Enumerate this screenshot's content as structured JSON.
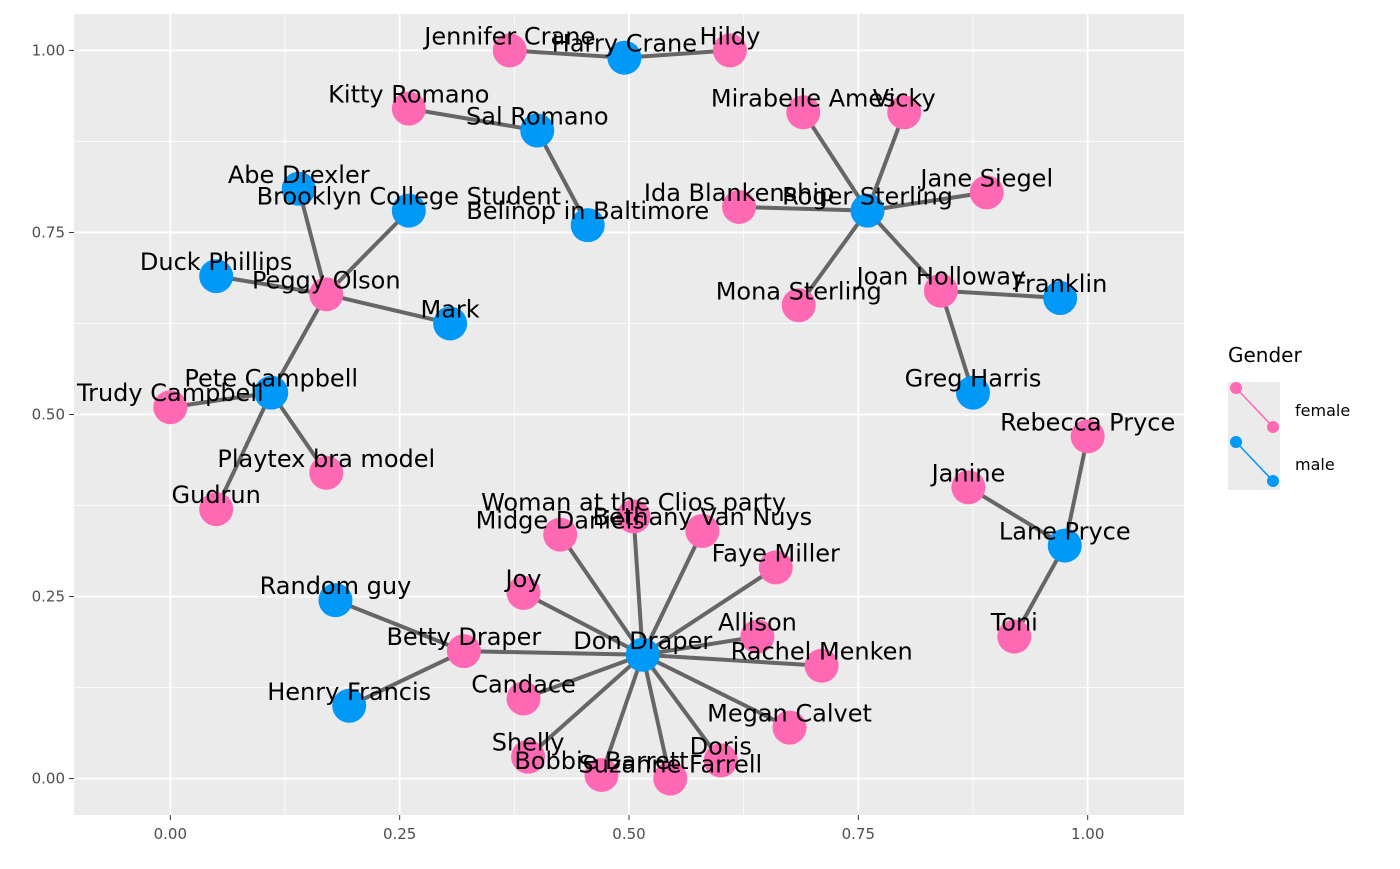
{
  "chart_data": {
    "type": "network",
    "x_ticks": [
      "0.00",
      "0.25",
      "0.50",
      "0.75",
      "1.00"
    ],
    "y_ticks": [
      "0.00",
      "0.25",
      "0.50",
      "0.75",
      "1.00"
    ],
    "xlim": [
      -0.105,
      1.105
    ],
    "ylim": [
      -0.05,
      1.05
    ],
    "grid": true,
    "colors": {
      "female": "#ff69b4",
      "male": "#0099f8",
      "edge": "#666666",
      "panel": "#ebebeb",
      "grid": "#ffffff"
    },
    "legend": {
      "title": "Gender",
      "position": "right",
      "items": [
        {
          "key": "female",
          "label": "female"
        },
        {
          "key": "male",
          "label": "male"
        }
      ]
    },
    "nodes": [
      {
        "id": "Jennifer Crane",
        "x": 0.37,
        "y": 1.0,
        "gender": "female"
      },
      {
        "id": "Harry Crane",
        "x": 0.495,
        "y": 0.99,
        "gender": "male"
      },
      {
        "id": "Hildy",
        "x": 0.61,
        "y": 1.0,
        "gender": "female"
      },
      {
        "id": "Kitty Romano",
        "x": 0.26,
        "y": 0.92,
        "gender": "female"
      },
      {
        "id": "Sal Romano",
        "x": 0.4,
        "y": 0.89,
        "gender": "male"
      },
      {
        "id": "Mirabelle Ames",
        "x": 0.69,
        "y": 0.915,
        "gender": "female"
      },
      {
        "id": "Vicky",
        "x": 0.8,
        "y": 0.915,
        "gender": "female"
      },
      {
        "id": "Abe Drexler",
        "x": 0.14,
        "y": 0.81,
        "gender": "male"
      },
      {
        "id": "Brooklyn College Student",
        "x": 0.26,
        "y": 0.78,
        "gender": "male"
      },
      {
        "id": "Belinop in Baltimore",
        "x": 0.455,
        "y": 0.76,
        "gender": "male"
      },
      {
        "id": "Ida Blankenship",
        "x": 0.62,
        "y": 0.785,
        "gender": "female"
      },
      {
        "id": "Roger Sterling",
        "x": 0.76,
        "y": 0.78,
        "gender": "male"
      },
      {
        "id": "Jane Siegel",
        "x": 0.89,
        "y": 0.805,
        "gender": "female"
      },
      {
        "id": "Duck Phillips",
        "x": 0.05,
        "y": 0.69,
        "gender": "male"
      },
      {
        "id": "Peggy Olson",
        "x": 0.17,
        "y": 0.665,
        "gender": "female"
      },
      {
        "id": "Mark",
        "x": 0.305,
        "y": 0.625,
        "gender": "male"
      },
      {
        "id": "Mona Sterling",
        "x": 0.685,
        "y": 0.65,
        "gender": "female"
      },
      {
        "id": "Joan Holloway",
        "x": 0.84,
        "y": 0.67,
        "gender": "female"
      },
      {
        "id": "Franklin",
        "x": 0.97,
        "y": 0.66,
        "gender": "male"
      },
      {
        "id": "Pete Campbell",
        "x": 0.11,
        "y": 0.53,
        "gender": "male"
      },
      {
        "id": "Trudy Campbell",
        "x": 0.0,
        "y": 0.51,
        "gender": "female"
      },
      {
        "id": "Greg Harris",
        "x": 0.875,
        "y": 0.53,
        "gender": "male"
      },
      {
        "id": "Rebecca Pryce",
        "x": 1.0,
        "y": 0.47,
        "gender": "female"
      },
      {
        "id": "Playtex bra model",
        "x": 0.17,
        "y": 0.42,
        "gender": "female"
      },
      {
        "id": "Gudrun",
        "x": 0.05,
        "y": 0.37,
        "gender": "female"
      },
      {
        "id": "Janine",
        "x": 0.87,
        "y": 0.4,
        "gender": "female"
      },
      {
        "id": "Woman at the Clios party",
        "x": 0.505,
        "y": 0.36,
        "gender": "female"
      },
      {
        "id": "Bethany Van Nuys",
        "x": 0.58,
        "y": 0.34,
        "gender": "female"
      },
      {
        "id": "Midge Daniels",
        "x": 0.425,
        "y": 0.335,
        "gender": "female"
      },
      {
        "id": "Lane Pryce",
        "x": 0.975,
        "y": 0.32,
        "gender": "male"
      },
      {
        "id": "Faye Miller",
        "x": 0.66,
        "y": 0.29,
        "gender": "female"
      },
      {
        "id": "Joy",
        "x": 0.385,
        "y": 0.255,
        "gender": "female"
      },
      {
        "id": "Random guy",
        "x": 0.18,
        "y": 0.245,
        "gender": "male"
      },
      {
        "id": "Allison",
        "x": 0.64,
        "y": 0.195,
        "gender": "female"
      },
      {
        "id": "Toni",
        "x": 0.92,
        "y": 0.195,
        "gender": "female"
      },
      {
        "id": "Betty Draper",
        "x": 0.32,
        "y": 0.175,
        "gender": "female"
      },
      {
        "id": "Don Draper",
        "x": 0.515,
        "y": 0.17,
        "gender": "male"
      },
      {
        "id": "Rachel Menken",
        "x": 0.71,
        "y": 0.155,
        "gender": "female"
      },
      {
        "id": "Candace",
        "x": 0.385,
        "y": 0.11,
        "gender": "female"
      },
      {
        "id": "Henry Francis",
        "x": 0.195,
        "y": 0.1,
        "gender": "male"
      },
      {
        "id": "Megan Calvet",
        "x": 0.675,
        "y": 0.07,
        "gender": "female"
      },
      {
        "id": "Shelly",
        "x": 0.39,
        "y": 0.03,
        "gender": "female"
      },
      {
        "id": "Doris",
        "x": 0.6,
        "y": 0.025,
        "gender": "female"
      },
      {
        "id": "Bobbie Barrett",
        "x": 0.47,
        "y": 0.005,
        "gender": "female"
      },
      {
        "id": "Suzanne Farrell",
        "x": 0.545,
        "y": 0.0,
        "gender": "female"
      }
    ],
    "edges": [
      [
        "Jennifer Crane",
        "Harry Crane"
      ],
      [
        "Harry Crane",
        "Hildy"
      ],
      [
        "Kitty Romano",
        "Sal Romano"
      ],
      [
        "Sal Romano",
        "Belinop in Baltimore"
      ],
      [
        "Abe Drexler",
        "Peggy Olson"
      ],
      [
        "Brooklyn College Student",
        "Peggy Olson"
      ],
      [
        "Duck Phillips",
        "Peggy Olson"
      ],
      [
        "Peggy Olson",
        "Mark"
      ],
      [
        "Peggy Olson",
        "Pete Campbell"
      ],
      [
        "Pete Campbell",
        "Trudy Campbell"
      ],
      [
        "Pete Campbell",
        "Playtex bra model"
      ],
      [
        "Pete Campbell",
        "Gudrun"
      ],
      [
        "Ida Blankenship",
        "Roger Sterling"
      ],
      [
        "Mirabelle Ames",
        "Roger Sterling"
      ],
      [
        "Vicky",
        "Roger Sterling"
      ],
      [
        "Jane Siegel",
        "Roger Sterling"
      ],
      [
        "Mona Sterling",
        "Roger Sterling"
      ],
      [
        "Joan Holloway",
        "Roger Sterling"
      ],
      [
        "Joan Holloway",
        "Franklin"
      ],
      [
        "Joan Holloway",
        "Greg Harris"
      ],
      [
        "Rebecca Pryce",
        "Lane Pryce"
      ],
      [
        "Janine",
        "Lane Pryce"
      ],
      [
        "Lane Pryce",
        "Toni"
      ],
      [
        "Don Draper",
        "Betty Draper"
      ],
      [
        "Betty Draper",
        "Random guy"
      ],
      [
        "Betty Draper",
        "Henry Francis"
      ],
      [
        "Don Draper",
        "Midge Daniels"
      ],
      [
        "Don Draper",
        "Woman at the Clios party"
      ],
      [
        "Don Draper",
        "Bethany Van Nuys"
      ],
      [
        "Don Draper",
        "Faye Miller"
      ],
      [
        "Don Draper",
        "Joy"
      ],
      [
        "Don Draper",
        "Allison"
      ],
      [
        "Don Draper",
        "Rachel Menken"
      ],
      [
        "Don Draper",
        "Candace"
      ],
      [
        "Don Draper",
        "Megan Calvet"
      ],
      [
        "Don Draper",
        "Shelly"
      ],
      [
        "Don Draper",
        "Doris"
      ],
      [
        "Don Draper",
        "Bobbie Barrett"
      ],
      [
        "Don Draper",
        "Suzanne Farrell"
      ]
    ]
  }
}
